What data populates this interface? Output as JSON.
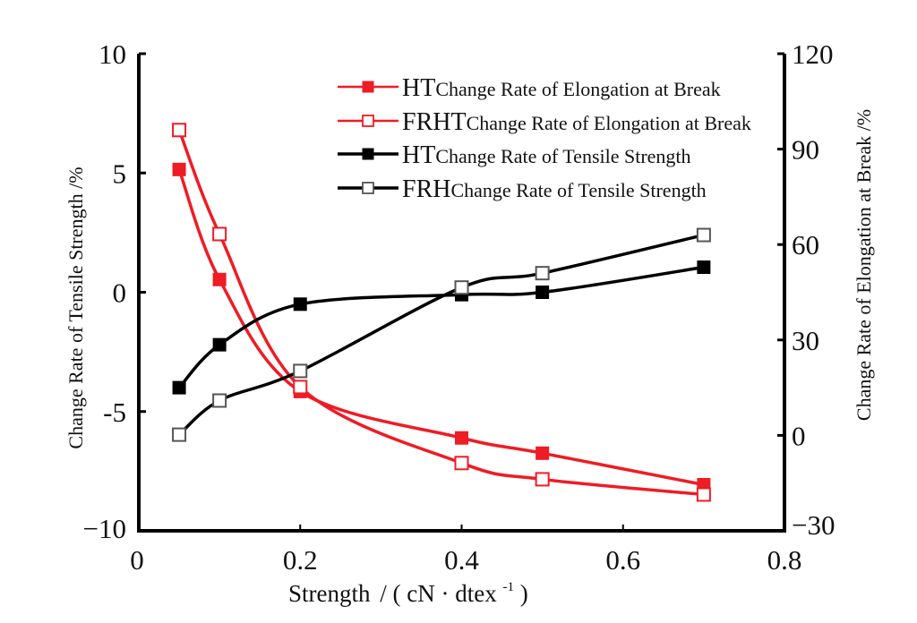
{
  "chart_data": {
    "type": "line",
    "title": "",
    "xlabel": "Strength / (cN · dtex⁻¹)",
    "xlabel_parts": {
      "main": "Strength",
      "unit_open": "/ ( cN · dtex",
      "superscript": "-1",
      "unit_close": " )"
    },
    "ylabel_left": "Change Rate of Tensile Strength /%",
    "ylabel_right": "Change Rate of Elongation at Break /%",
    "xlim": [
      0,
      0.8
    ],
    "ylim_left": [
      -10,
      10
    ],
    "ylim_right": [
      -30,
      120
    ],
    "x_ticks": [
      "0",
      "0.2",
      "0.4",
      "0.6",
      "0.8"
    ],
    "x_tick_values": [
      0,
      0.2,
      0.4,
      0.6,
      0.8
    ],
    "y_left_ticks": [
      "10",
      "5",
      "0",
      "-5",
      "−10"
    ],
    "y_left_tick_values": [
      10,
      5,
      0,
      -5,
      -10
    ],
    "y_right_ticks": [
      "120",
      "90",
      "60",
      "30",
      "0",
      "−30"
    ],
    "y_right_tick_values": [
      120,
      90,
      60,
      30,
      0,
      -30
    ],
    "grid": false,
    "legend_position": "top-right",
    "x": [
      0.05,
      0.1,
      0.2,
      0.4,
      0.5,
      0.7
    ],
    "series": [
      {
        "name": "HT Change Rate of Elongation at Break",
        "prefix": "HT",
        "label": "Change Rate of Elongation at Break",
        "axis": "right",
        "color": "#ee1c25",
        "marker": "filled-square",
        "values": [
          83.6,
          49.0,
          13.8,
          -0.8,
          -5.6,
          -15.5
        ]
      },
      {
        "name": "FRHT Change Rate of Elongation at Break",
        "prefix": "FRHT",
        "label": "Change Rate of Elongation at Break",
        "axis": "right",
        "color": "#ee1c25",
        "marker": "open-square",
        "values": [
          96.0,
          63.3,
          15.2,
          -8.7,
          -13.8,
          -18.6
        ]
      },
      {
        "name": "HT Change Rate of Tensile Strength",
        "prefix": "HT",
        "label": "Change Rate of Tensile Strength",
        "axis": "left",
        "color": "#000000",
        "marker": "filled-square",
        "values": [
          -4.0,
          -2.2,
          -0.5,
          -0.1,
          0.0,
          1.05
        ]
      },
      {
        "name": "FRH Change Rate of Tensile Strength",
        "prefix": "FRH",
        "label": "Change Rate of Tensile Strength",
        "axis": "left",
        "color": "#000000",
        "marker": "open-square",
        "values": [
          -5.97,
          -4.54,
          -3.3,
          0.2,
          0.8,
          2.4
        ]
      }
    ]
  }
}
